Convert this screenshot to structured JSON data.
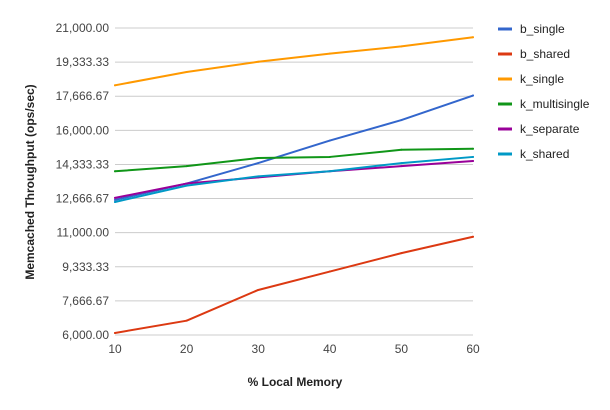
{
  "chart_data": {
    "type": "line",
    "xlabel": "% Local Memory",
    "ylabel": "Memcached Throughput (ops/sec)",
    "x": [
      10,
      20,
      30,
      40,
      50,
      60
    ],
    "xlim": [
      10,
      60
    ],
    "ylim": [
      6000,
      21000
    ],
    "y_ticks": [
      "6,000.00",
      "7,666.67",
      "9,333.33",
      "11,000.00",
      "12,666.67",
      "14,333.33",
      "16,000.00",
      "17,666.67",
      "19,333.33",
      "21,000.00"
    ],
    "x_ticks": [
      "10",
      "20",
      "30",
      "40",
      "50",
      "60"
    ],
    "grid": true,
    "legend_position": "right",
    "series": [
      {
        "name": "b_single",
        "color": "#3366cc",
        "values": [
          12600,
          13400,
          14400,
          15500,
          16500,
          17700
        ]
      },
      {
        "name": "b_shared",
        "color": "#dc3912",
        "values": [
          6100,
          6700,
          8200,
          9100,
          10000,
          10800
        ]
      },
      {
        "name": "k_single",
        "color": "#ff9900",
        "values": [
          18200,
          18850,
          19350,
          19750,
          20100,
          20550
        ]
      },
      {
        "name": "k_multisingle",
        "color": "#109618",
        "values": [
          14000,
          14250,
          14650,
          14700,
          15050,
          15100
        ]
      },
      {
        "name": "k_separate",
        "color": "#990099",
        "values": [
          12700,
          13400,
          13700,
          14000,
          14250,
          14500
        ]
      },
      {
        "name": "k_shared",
        "color": "#0099c6",
        "values": [
          12500,
          13300,
          13750,
          14000,
          14400,
          14700
        ]
      }
    ]
  }
}
